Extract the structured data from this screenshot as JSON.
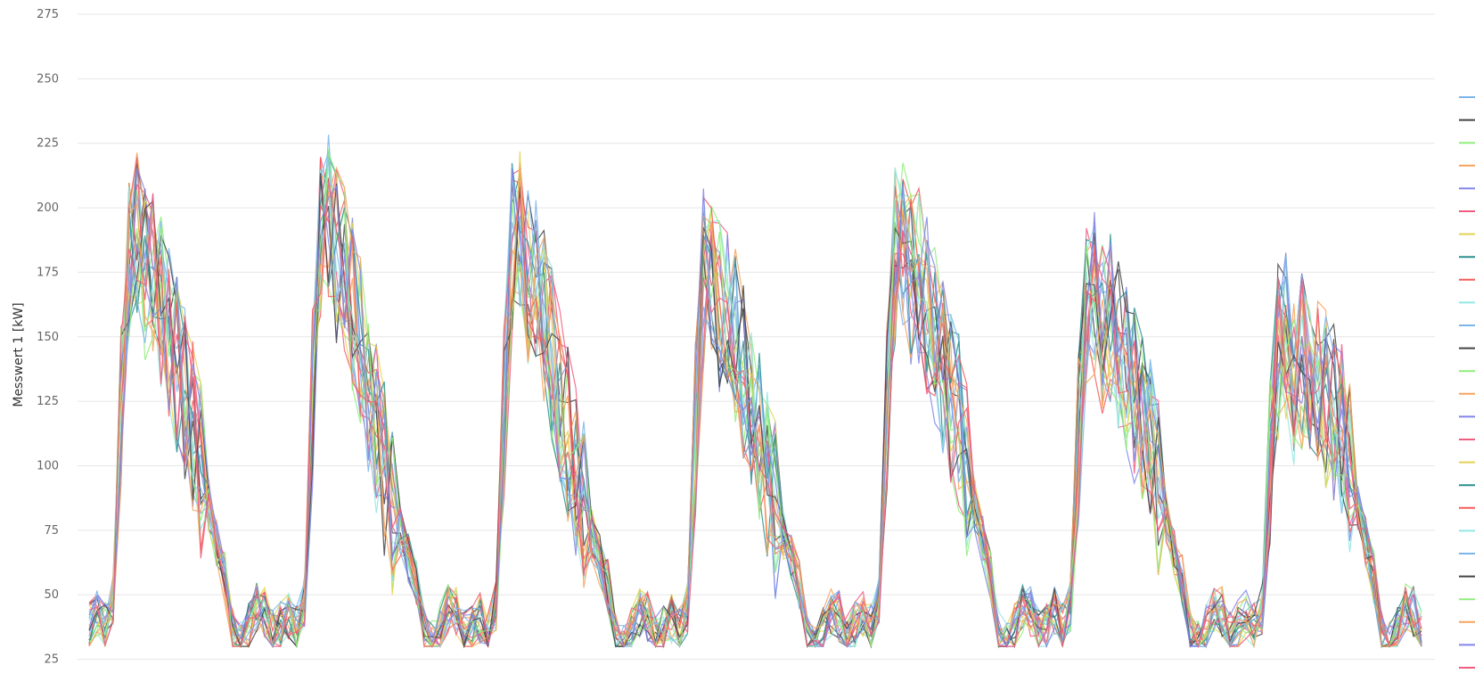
{
  "chart_data": {
    "type": "line",
    "title": "",
    "xlabel": "",
    "ylabel": "Messwert 1 [kW]",
    "ylim": [
      10,
      275
    ],
    "yticks": [
      25,
      50,
      75,
      100,
      125,
      150,
      175,
      200,
      225,
      250,
      275
    ],
    "grid": true,
    "legend": "right",
    "x_index_range": [
      0,
      167
    ],
    "series_style": "many overlapping series (approx. 26), each a noisy daily load profile over 7 days",
    "day_profile_summary": [
      {
        "day": 1,
        "night_min": 38,
        "peak": 235,
        "evening": 100
      },
      {
        "day": 2,
        "night_min": 38,
        "peak": 245,
        "evening": 80
      },
      {
        "day": 3,
        "night_min": 36,
        "peak": 235,
        "evening": 80
      },
      {
        "day": 4,
        "night_min": 36,
        "peak": 222,
        "evening": 80
      },
      {
        "day": 5,
        "night_min": 38,
        "peak": 233,
        "evening": 100
      },
      {
        "day": 6,
        "night_min": 38,
        "peak": 210,
        "evening": 90
      },
      {
        "day": 7,
        "night_min": 38,
        "peak": 186,
        "evening": 100
      }
    ],
    "series": [
      {
        "color": "#7cb5ec"
      },
      {
        "color": "#434348"
      },
      {
        "color": "#90ed7d"
      },
      {
        "color": "#f7a35c"
      },
      {
        "color": "#8085e9"
      },
      {
        "color": "#f15c80"
      },
      {
        "color": "#e4d354"
      },
      {
        "color": "#2b908f"
      },
      {
        "color": "#f45b5b"
      },
      {
        "color": "#91e8e1"
      },
      {
        "color": "#7cb5ec"
      },
      {
        "color": "#434348"
      },
      {
        "color": "#90ed7d"
      },
      {
        "color": "#f7a35c"
      },
      {
        "color": "#8085e9"
      },
      {
        "color": "#f15c80"
      },
      {
        "color": "#e4d354"
      },
      {
        "color": "#2b908f"
      },
      {
        "color": "#f45b5b"
      },
      {
        "color": "#91e8e1"
      },
      {
        "color": "#7cb5ec"
      },
      {
        "color": "#434348"
      },
      {
        "color": "#90ed7d"
      },
      {
        "color": "#f7a35c"
      },
      {
        "color": "#8085e9"
      },
      {
        "color": "#f15c80"
      }
    ]
  }
}
